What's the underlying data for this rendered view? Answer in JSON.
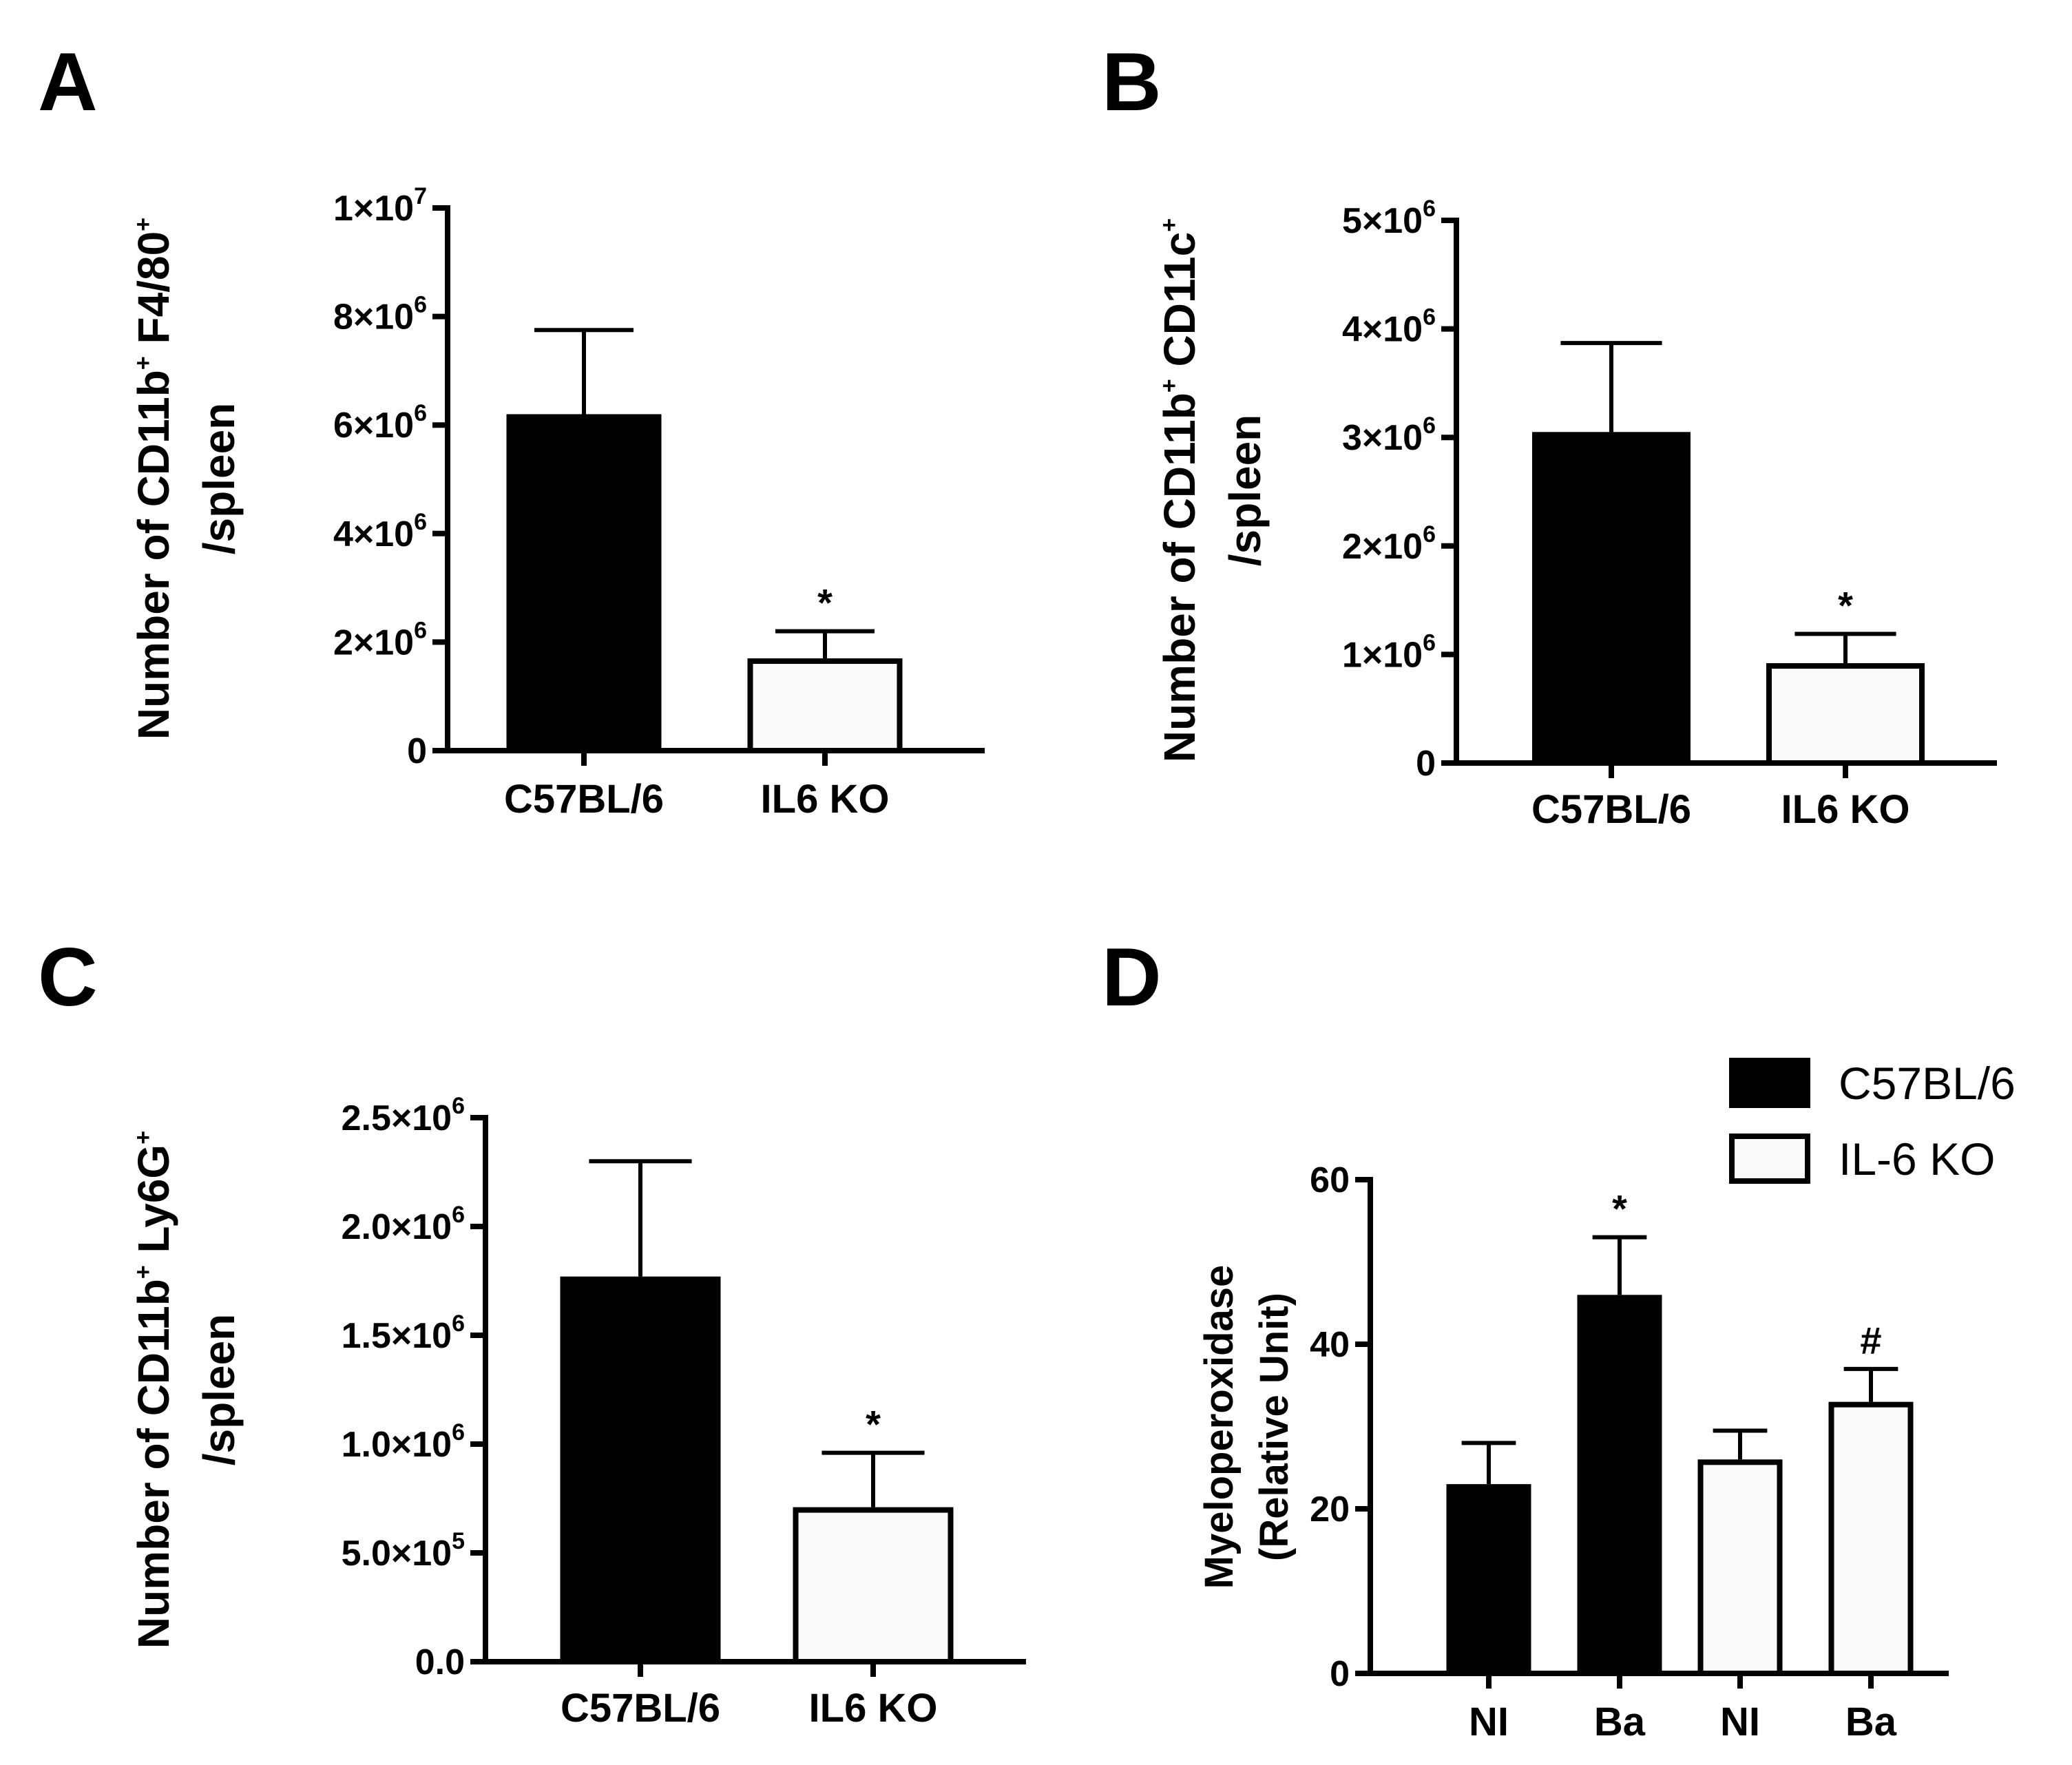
{
  "chart_data": [
    {
      "panel": "A",
      "type": "bar",
      "ylabel": [
        "Number of CD11b",
        "+",
        " F4/80",
        "+",
        "/spleen"
      ],
      "categories": [
        "C57BL/6",
        "IL6 KO"
      ],
      "values": [
        6200000,
        1700000
      ],
      "errors": [
        1550000,
        500000
      ],
      "colors": [
        "#000000",
        "#fafafa"
      ],
      "annotations": [
        "",
        "*"
      ],
      "ylim": [
        0,
        10000000
      ],
      "ticks": [
        {
          "value": 0,
          "base": "0",
          "exp": ""
        },
        {
          "value": 2000000,
          "base": "2×10",
          "exp": "6"
        },
        {
          "value": 4000000,
          "base": "4×10",
          "exp": "6"
        },
        {
          "value": 6000000,
          "base": "6×10",
          "exp": "6"
        },
        {
          "value": 8000000,
          "base": "8×10",
          "exp": "6"
        },
        {
          "value": 10000000,
          "base": "1×10",
          "exp": "7"
        }
      ]
    },
    {
      "panel": "B",
      "type": "bar",
      "ylabel": [
        "Number of CD11b",
        "+",
        " CD11c",
        "+",
        "/spleen"
      ],
      "categories": [
        "C57BL/6",
        "IL6 KO"
      ],
      "values": [
        3050000,
        920000
      ],
      "errors": [
        820000,
        270000
      ],
      "colors": [
        "#000000",
        "#fafafa"
      ],
      "annotations": [
        "",
        "*"
      ],
      "ylim": [
        0,
        5000000
      ],
      "ticks": [
        {
          "value": 0,
          "base": "0",
          "exp": ""
        },
        {
          "value": 1000000,
          "base": "1×10",
          "exp": "6"
        },
        {
          "value": 2000000,
          "base": "2×10",
          "exp": "6"
        },
        {
          "value": 3000000,
          "base": "3×10",
          "exp": "6"
        },
        {
          "value": 4000000,
          "base": "4×10",
          "exp": "6"
        },
        {
          "value": 5000000,
          "base": "5×10",
          "exp": "6"
        }
      ]
    },
    {
      "panel": "C",
      "type": "bar",
      "ylabel": [
        "Number of CD11b",
        "+",
        " Ly6G",
        "+",
        "/spleen"
      ],
      "categories": [
        "C57BL/6",
        "IL6 KO"
      ],
      "values": [
        1770000,
        710000
      ],
      "errors": [
        530000,
        250000
      ],
      "colors": [
        "#000000",
        "#fafafa"
      ],
      "annotations": [
        "",
        "*"
      ],
      "ylim": [
        0,
        2500000
      ],
      "ticks": [
        {
          "value": 0,
          "base": "0.0",
          "exp": ""
        },
        {
          "value": 500000,
          "base": "5.0×10",
          "exp": "5"
        },
        {
          "value": 1000000,
          "base": "1.0×10",
          "exp": "6"
        },
        {
          "value": 1500000,
          "base": "1.5×10",
          "exp": "6"
        },
        {
          "value": 2000000,
          "base": "2.0×10",
          "exp": "6"
        },
        {
          "value": 2500000,
          "base": "2.5×10",
          "exp": "6"
        }
      ]
    },
    {
      "panel": "D",
      "type": "bar",
      "ylabel": [
        "Myeloperoxidase",
        "(Relative Unit)"
      ],
      "categories": [
        "NI",
        "Ba",
        "NI",
        "Ba"
      ],
      "values": [
        23,
        46,
        26,
        33
      ],
      "errors": [
        5,
        7,
        3.5,
        4
      ],
      "colors": [
        "#000000",
        "#000000",
        "#fafafa",
        "#fafafa"
      ],
      "annotations": [
        "",
        "*",
        "",
        "#"
      ],
      "ylim": [
        0,
        60
      ],
      "ticks": [
        {
          "value": 0,
          "base": "0",
          "exp": ""
        },
        {
          "value": 20,
          "base": "20",
          "exp": ""
        },
        {
          "value": 40,
          "base": "40",
          "exp": ""
        },
        {
          "value": 60,
          "base": "60",
          "exp": ""
        }
      ],
      "legend": [
        {
          "label": "C57BL/6",
          "color": "#000000"
        },
        {
          "label": "IL-6 KO",
          "color": "#fafafa"
        }
      ]
    }
  ]
}
